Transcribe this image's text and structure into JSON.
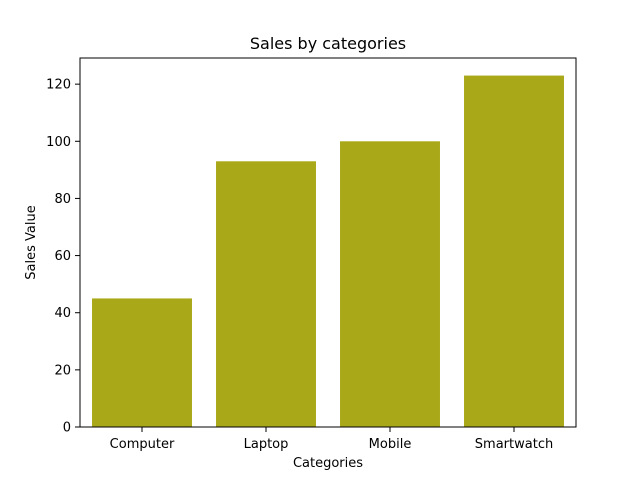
{
  "chart_data": {
    "type": "bar",
    "title": "Sales by categories",
    "xlabel": "Categories",
    "ylabel": "Sales Value",
    "categories": [
      "Computer",
      "Laptop",
      "Mobile",
      "Smartwatch"
    ],
    "values": [
      45,
      93,
      100,
      123
    ],
    "ylim": [
      0,
      129.15
    ],
    "yticks": [
      0,
      20,
      40,
      60,
      80,
      100,
      120
    ],
    "grid": false,
    "colors": {
      "bar": "#a9a818",
      "axis": "#000000",
      "background": "#ffffff"
    }
  }
}
